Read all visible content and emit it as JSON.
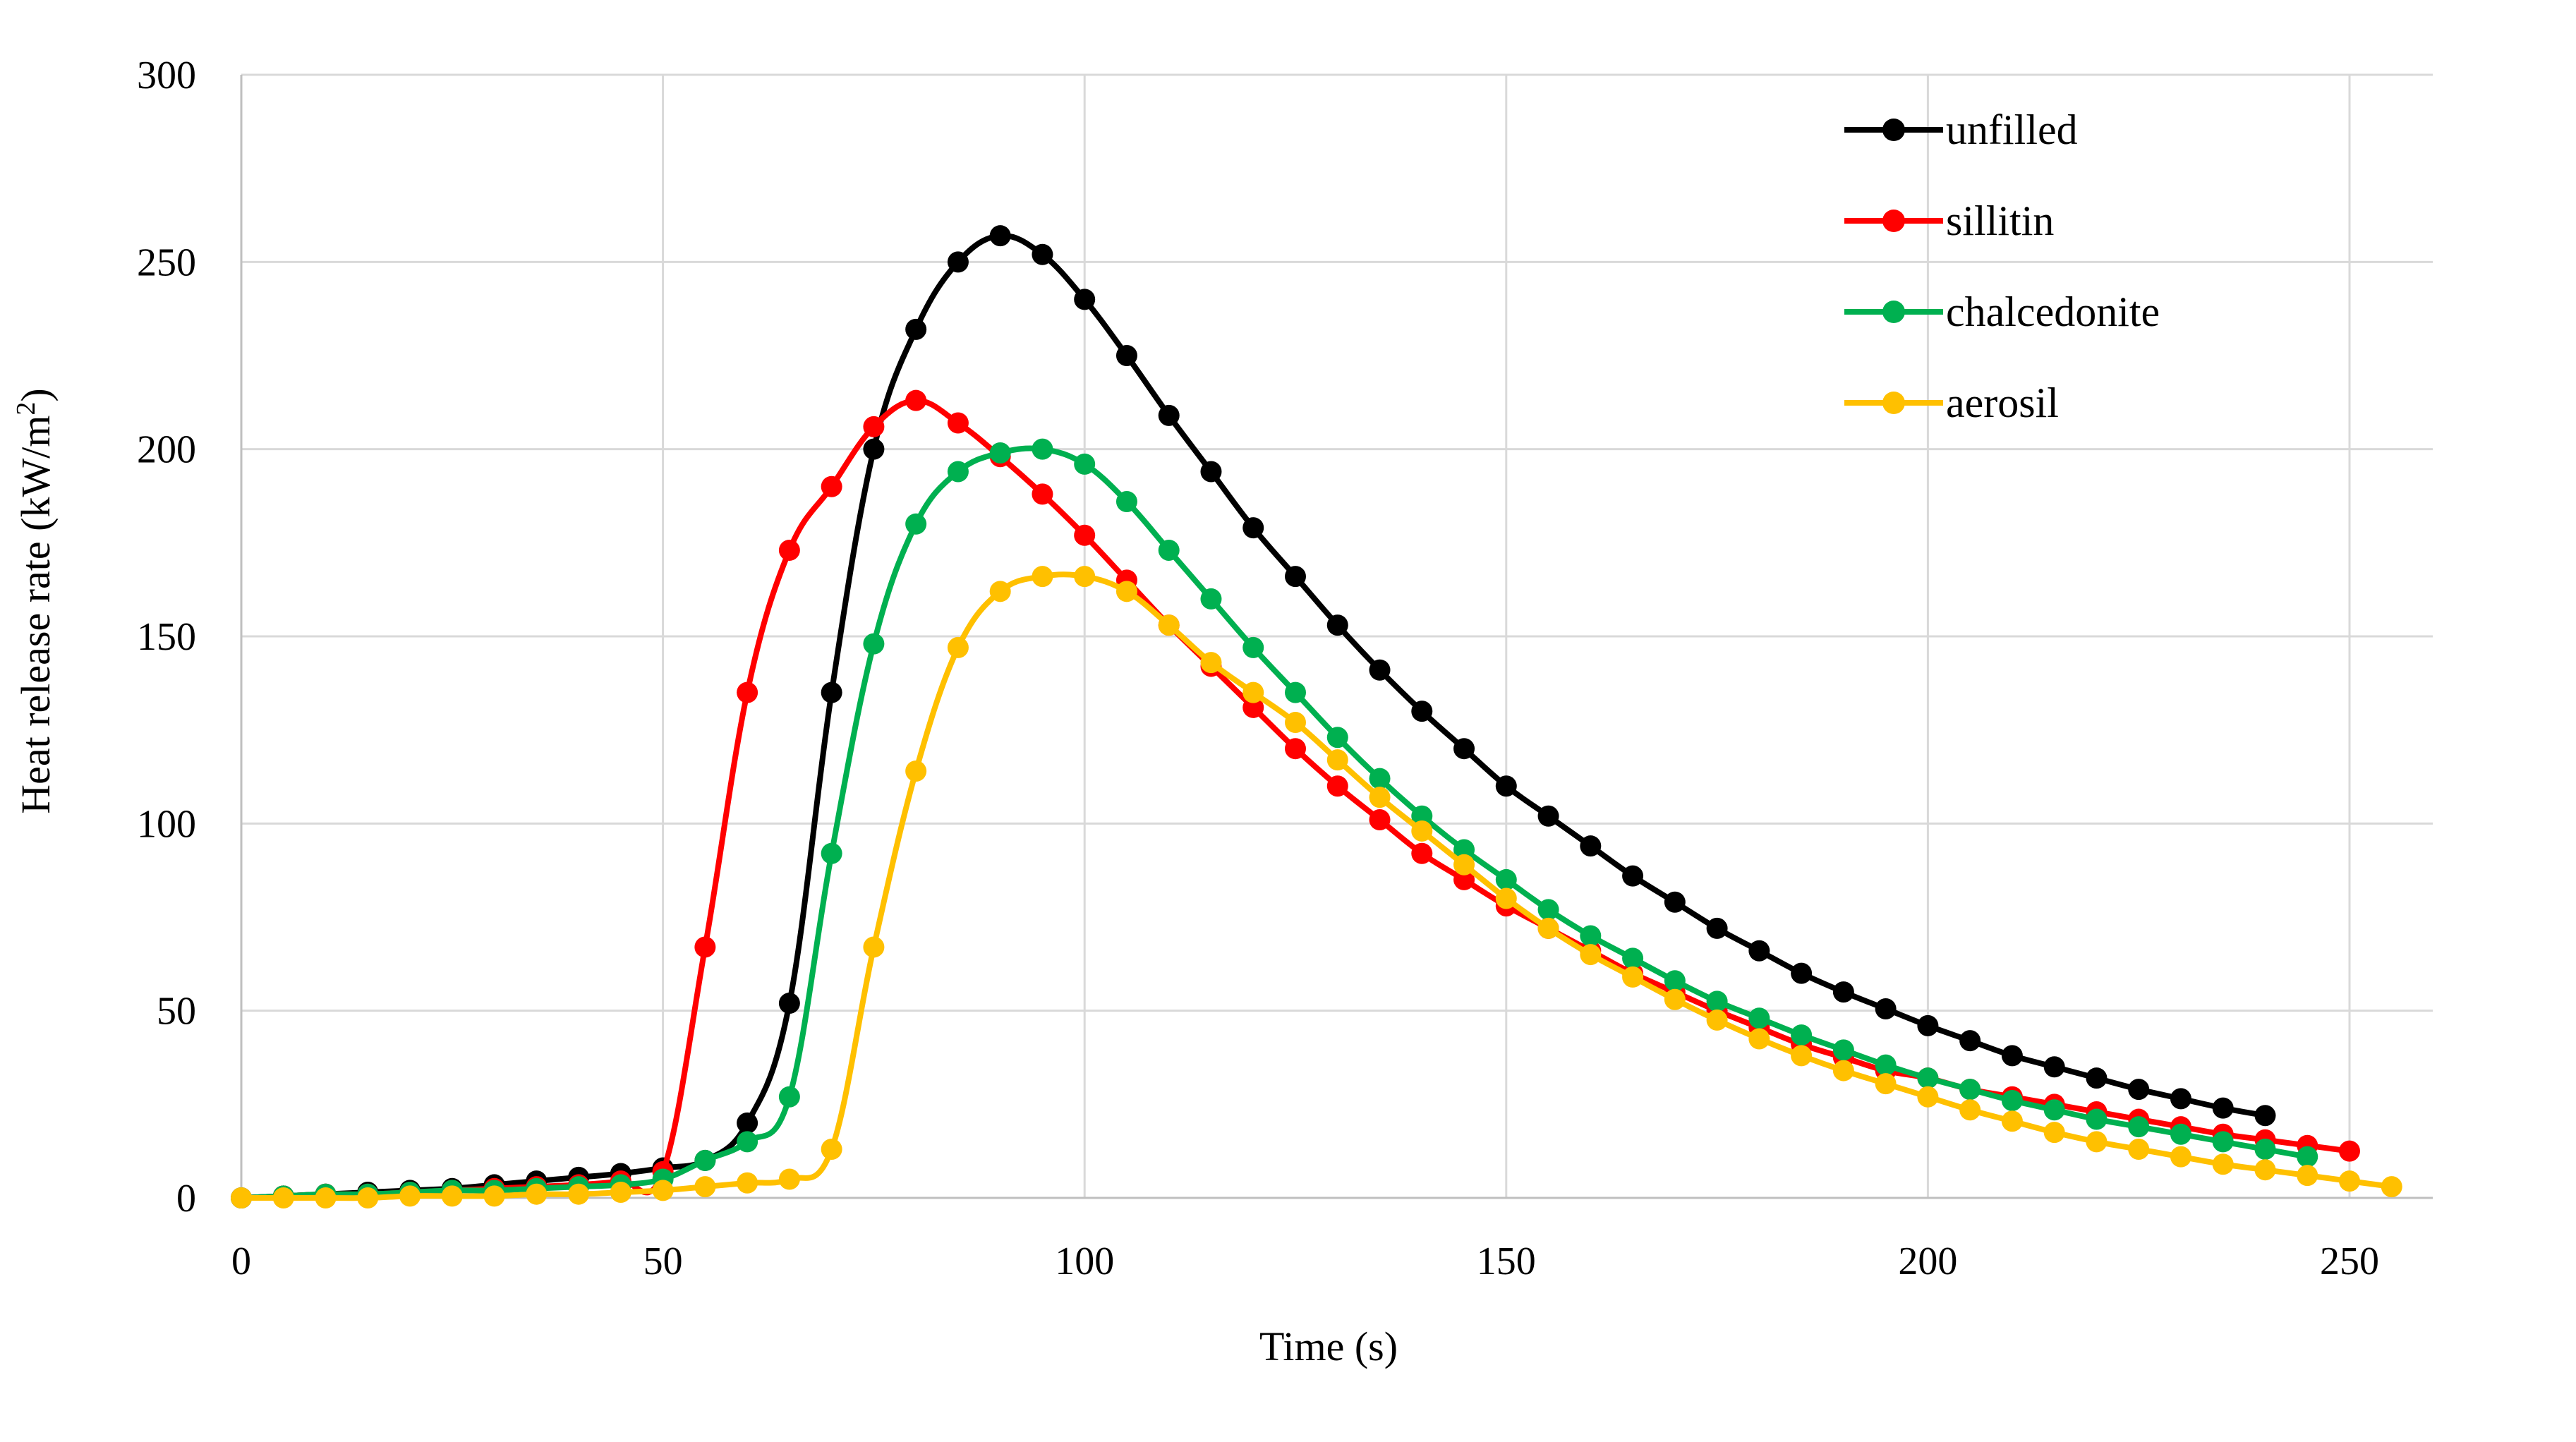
{
  "chart_data": {
    "type": "line",
    "title": "",
    "xlabel": "Time (s)",
    "ylabel_prefix": "Heat release rate (kW/m",
    "ylabel_sup": "2",
    "ylabel_suffix": ")",
    "xlim": [
      0,
      260
    ],
    "ylim": [
      0,
      300
    ],
    "xticks": [
      0,
      50,
      100,
      150,
      200,
      250
    ],
    "yticks": [
      0,
      50,
      100,
      150,
      200,
      250,
      300
    ],
    "grid": true,
    "legend_position": "top-right",
    "series": [
      {
        "name": "unfilled",
        "color": "#000000",
        "x": [
          0,
          5,
          10,
          15,
          20,
          25,
          30,
          35,
          40,
          45,
          50,
          55,
          60,
          65,
          70,
          75,
          80,
          85,
          90,
          95,
          100,
          105,
          110,
          115,
          120,
          125,
          130,
          135,
          140,
          145,
          150,
          155,
          160,
          165,
          170,
          175,
          180,
          185,
          190,
          195,
          200,
          205,
          210,
          215,
          220,
          225,
          230,
          235,
          240
        ],
        "values": [
          0,
          0.5,
          1,
          1.5,
          2,
          2.5,
          3.5,
          4.5,
          5.5,
          6.5,
          8,
          10,
          20,
          52,
          135,
          200,
          232,
          250,
          257,
          252,
          240,
          225,
          209,
          194,
          179,
          166,
          153,
          141,
          130,
          120,
          110,
          102,
          94,
          86,
          79,
          72,
          66,
          60,
          55,
          50.5,
          46,
          42,
          38,
          35,
          32,
          29,
          26.5,
          24,
          22
        ],
        "markers": true
      },
      {
        "name": "sillitin",
        "color": "#ff0000",
        "x": [
          0,
          5,
          10,
          15,
          20,
          25,
          30,
          35,
          40,
          45,
          50,
          55,
          60,
          65,
          70,
          75,
          80,
          85,
          90,
          95,
          100,
          105,
          110,
          115,
          120,
          125,
          130,
          135,
          140,
          145,
          150,
          155,
          160,
          165,
          170,
          175,
          180,
          185,
          190,
          195,
          200,
          205,
          210,
          215,
          220,
          225,
          230,
          235,
          240,
          245,
          250
        ],
        "values": [
          0,
          0.5,
          1,
          1,
          1.5,
          2,
          2.5,
          3,
          3.5,
          4.5,
          7,
          67,
          135,
          173,
          190,
          206,
          213,
          207,
          198,
          188,
          177,
          165,
          153,
          142,
          131,
          120,
          110,
          101,
          92,
          85,
          78,
          72,
          66,
          60,
          55,
          50,
          45.5,
          41,
          37.5,
          34,
          32,
          29,
          27,
          25,
          23,
          21,
          19,
          17,
          15.5,
          14,
          12.5
        ],
        "markers": true
      },
      {
        "name": "chalcedonite",
        "color": "#00b050",
        "x": [
          0,
          5,
          10,
          15,
          20,
          25,
          30,
          35,
          40,
          45,
          50,
          55,
          60,
          65,
          70,
          75,
          80,
          85,
          90,
          95,
          100,
          105,
          110,
          115,
          120,
          125,
          130,
          135,
          140,
          145,
          150,
          155,
          160,
          165,
          170,
          175,
          180,
          185,
          190,
          195,
          200,
          205,
          210,
          215,
          220,
          225,
          230,
          235,
          240,
          245
        ],
        "values": [
          0,
          0.5,
          1,
          1,
          1.5,
          2,
          2,
          2.5,
          3,
          3.5,
          5,
          10,
          15,
          27,
          92,
          148,
          180,
          194,
          199,
          200,
          196,
          186,
          173,
          160,
          147,
          135,
          123,
          112,
          102,
          93,
          85,
          77,
          70,
          64,
          58,
          52.5,
          48,
          43.5,
          39.5,
          35.5,
          32,
          29,
          26,
          23.5,
          21,
          19,
          17,
          15,
          13,
          11
        ],
        "markers": true
      },
      {
        "name": "aerosil",
        "color": "#ffc000",
        "x": [
          0,
          5,
          10,
          15,
          20,
          25,
          30,
          35,
          40,
          45,
          50,
          55,
          60,
          65,
          70,
          75,
          80,
          85,
          90,
          95,
          100,
          105,
          110,
          115,
          120,
          125,
          130,
          135,
          140,
          145,
          150,
          155,
          160,
          165,
          170,
          175,
          180,
          185,
          190,
          195,
          200,
          205,
          210,
          215,
          220,
          225,
          230,
          235,
          240,
          245,
          250,
          255
        ],
        "values": [
          0,
          0,
          0,
          0,
          0.5,
          0.5,
          0.5,
          1,
          1,
          1.5,
          2,
          3,
          4,
          5,
          13,
          67,
          114,
          147,
          162,
          166,
          166,
          162,
          153,
          143,
          135,
          127,
          117,
          107,
          98,
          89,
          80,
          72,
          65,
          59,
          53,
          47.5,
          42.5,
          38,
          34,
          30.5,
          27,
          23.5,
          20.5,
          17.5,
          15,
          13,
          11,
          9,
          7.5,
          6,
          4.5,
          3
        ],
        "markers": true
      }
    ]
  }
}
